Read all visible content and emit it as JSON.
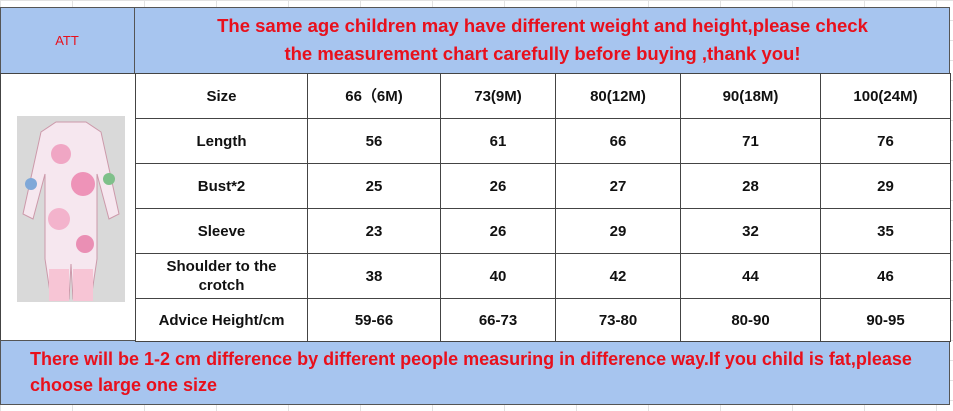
{
  "header": {
    "tag": "ATT",
    "title": [
      "The same age children may have different weight and height,please check",
      "the measurement chart carefully before buying ,thank you!"
    ]
  },
  "table": {
    "rows": [
      [
        "Size",
        "66（6M)",
        "73(9M)",
        "80(12M)",
        "90(18M)",
        "100(24M)"
      ],
      [
        "Length",
        "56",
        "61",
        "66",
        "71",
        "76"
      ],
      [
        "Bust*2",
        "25",
        "26",
        "27",
        "28",
        "29"
      ],
      [
        "Sleeve",
        "23",
        "26",
        "29",
        "32",
        "35"
      ],
      [
        "Shoulder to the crotch",
        "38",
        "40",
        "42",
        "44",
        "46"
      ],
      [
        "Advice Height/cm",
        "59-66",
        "66-73",
        "73-80",
        "80-90",
        "90-95"
      ]
    ]
  },
  "footer": {
    "note": "There will be 1-2 cm difference by different people measuring in difference way.If you child is fat,please choose large one size"
  }
}
